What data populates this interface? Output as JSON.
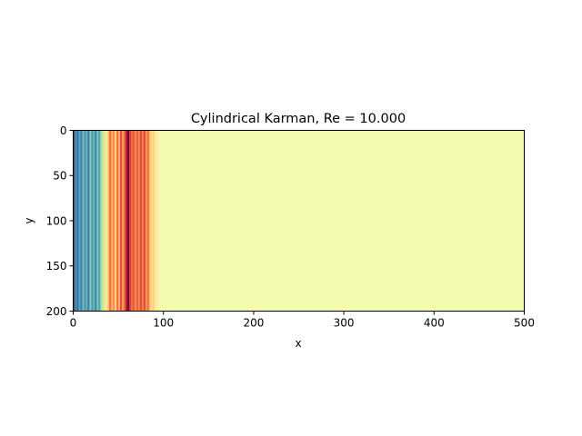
{
  "chart_data": {
    "type": "heatmap",
    "title": "Cylindrical Karman, Re = 10.000",
    "xlabel": "x",
    "ylabel": "y",
    "xlim": [
      0,
      500
    ],
    "ylim": [
      200,
      0
    ],
    "x_ticks": [
      0,
      100,
      200,
      300,
      400,
      500
    ],
    "y_ticks": [
      0,
      50,
      100,
      150,
      200
    ],
    "grid": false,
    "colormap": "Spectral",
    "background_color": "#f3fbae",
    "bands": [
      {
        "x0": 0,
        "x1": 2,
        "color": "#2f5a8a"
      },
      {
        "x0": 2,
        "x1": 4,
        "color": "#4d8fbc"
      },
      {
        "x0": 4,
        "x1": 6,
        "color": "#3a72a8"
      },
      {
        "x0": 6,
        "x1": 8,
        "color": "#5fa5b4"
      },
      {
        "x0": 8,
        "x1": 10,
        "color": "#3e7cb1"
      },
      {
        "x0": 10,
        "x1": 12,
        "color": "#74c2a7"
      },
      {
        "x0": 12,
        "x1": 14,
        "color": "#4a8fbf"
      },
      {
        "x0": 14,
        "x1": 16,
        "color": "#6bb8ab"
      },
      {
        "x0": 16,
        "x1": 18,
        "color": "#3b78b0"
      },
      {
        "x0": 18,
        "x1": 20,
        "color": "#8ad0a4"
      },
      {
        "x0": 20,
        "x1": 22,
        "color": "#4f95bd"
      },
      {
        "x0": 22,
        "x1": 24,
        "color": "#6cbaa9"
      },
      {
        "x0": 24,
        "x1": 26,
        "color": "#3f80b4"
      },
      {
        "x0": 26,
        "x1": 28,
        "color": "#7ccaa6"
      },
      {
        "x0": 28,
        "x1": 30,
        "color": "#579fb8"
      },
      {
        "x0": 30,
        "x1": 32,
        "color": "#a6dba0"
      },
      {
        "x0": 32,
        "x1": 34,
        "color": "#c7e89e"
      },
      {
        "x0": 34,
        "x1": 36,
        "color": "#fee08b"
      },
      {
        "x0": 36,
        "x1": 38,
        "color": "#e9f59d"
      },
      {
        "x0": 38,
        "x1": 40,
        "color": "#fdbf6f"
      },
      {
        "x0": 40,
        "x1": 42,
        "color": "#f46d43"
      },
      {
        "x0": 42,
        "x1": 44,
        "color": "#fdae61"
      },
      {
        "x0": 44,
        "x1": 46,
        "color": "#f88d52"
      },
      {
        "x0": 46,
        "x1": 48,
        "color": "#fdd482"
      },
      {
        "x0": 48,
        "x1": 50,
        "color": "#f46d43"
      },
      {
        "x0": 50,
        "x1": 52,
        "color": "#fdae61"
      },
      {
        "x0": 52,
        "x1": 54,
        "color": "#e34d38"
      },
      {
        "x0": 54,
        "x1": 56,
        "color": "#fb9d59"
      },
      {
        "x0": 56,
        "x1": 58,
        "color": "#f16640"
      },
      {
        "x0": 58,
        "x1": 60,
        "color": "#b8203d"
      },
      {
        "x0": 60,
        "x1": 62,
        "color": "#6e0f2c"
      },
      {
        "x0": 62,
        "x1": 64,
        "color": "#d53e4f"
      },
      {
        "x0": 64,
        "x1": 66,
        "color": "#f46d43"
      },
      {
        "x0": 66,
        "x1": 68,
        "color": "#e55a3e"
      },
      {
        "x0": 68,
        "x1": 70,
        "color": "#f88d52"
      },
      {
        "x0": 70,
        "x1": 72,
        "color": "#ea5f3f"
      },
      {
        "x0": 72,
        "x1": 74,
        "color": "#f7844e"
      },
      {
        "x0": 74,
        "x1": 76,
        "color": "#e34d38"
      },
      {
        "x0": 76,
        "x1": 78,
        "color": "#f67e4b"
      },
      {
        "x0": 78,
        "x1": 80,
        "color": "#dd4a3b"
      },
      {
        "x0": 80,
        "x1": 82,
        "color": "#fa9656"
      },
      {
        "x0": 82,
        "x1": 84,
        "color": "#f46d43"
      },
      {
        "x0": 84,
        "x1": 86,
        "color": "#fdbf6f"
      },
      {
        "x0": 86,
        "x1": 88,
        "color": "#fee08b"
      },
      {
        "x0": 88,
        "x1": 90,
        "color": "#fdd07c"
      },
      {
        "x0": 90,
        "x1": 92,
        "color": "#fee7a0"
      },
      {
        "x0": 92,
        "x1": 94,
        "color": "#fcecaa"
      },
      {
        "x0": 94,
        "x1": 96,
        "color": "#f6f6b0"
      }
    ]
  }
}
